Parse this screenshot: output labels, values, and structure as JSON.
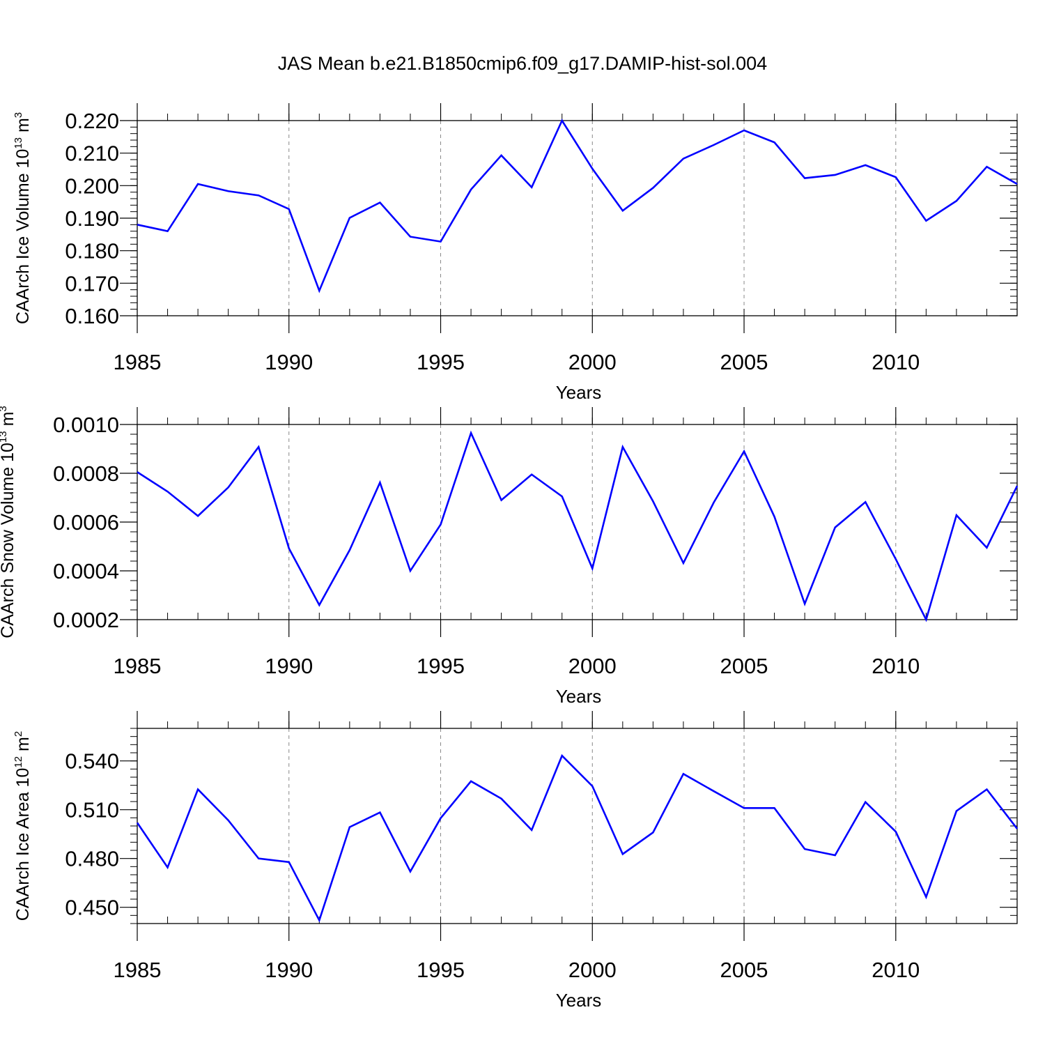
{
  "title": "JAS Mean b.e21.B1850cmip6.f09_g17.DAMIP-hist-sol.004",
  "chart_data": [
    {
      "type": "line",
      "title": "JAS Mean b.e21.B1850cmip6.f09_g17.DAMIP-hist-sol.004",
      "xlabel": "Years",
      "ylabel": {
        "text": "CAArch Ice Volume 10",
        "exp": "13",
        "unit": " m",
        "unit_exp": "3"
      },
      "xlim": [
        1985,
        2014
      ],
      "ylim": [
        0.16,
        0.22
      ],
      "x_ticks": [
        1985,
        1990,
        1995,
        2000,
        2005,
        2010
      ],
      "x_tick_labels": [
        "1985",
        "1990",
        "1995",
        "2000",
        "2005",
        "2010"
      ],
      "y_ticks": [
        0.16,
        0.17,
        0.18,
        0.19,
        0.2,
        0.21,
        0.22
      ],
      "y_tick_labels": [
        "0.160",
        "0.170",
        "0.180",
        "0.190",
        "0.200",
        "0.210",
        "0.220"
      ],
      "y_minor_step": 0.002,
      "gridlines": "dashed vertical at major x ticks",
      "line_color": "#0000ff",
      "x": [
        1985,
        1986,
        1987,
        1988,
        1989,
        1990,
        1991,
        1992,
        1993,
        1994,
        1995,
        1996,
        1997,
        1998,
        1999,
        2000,
        2001,
        2002,
        2003,
        2004,
        2005,
        2006,
        2007,
        2008,
        2009,
        2010,
        2011,
        2012,
        2013,
        2014
      ],
      "values": [
        0.188,
        0.186,
        0.2005,
        0.1983,
        0.197,
        0.1928,
        0.1677,
        0.1901,
        0.1948,
        0.1843,
        0.1828,
        0.1988,
        0.2093,
        0.1995,
        0.22,
        0.2052,
        0.1923,
        0.1993,
        0.2083,
        0.2125,
        0.217,
        0.2133,
        0.2023,
        0.2033,
        0.2063,
        0.2026,
        0.1892,
        0.1953,
        0.2058,
        0.2005
      ]
    },
    {
      "type": "line",
      "xlabel": "Years",
      "ylabel": {
        "text": "CAArch Snow Volume 10",
        "exp": "13",
        "unit": " m",
        "unit_exp": "3"
      },
      "xlim": [
        1985,
        2014
      ],
      "ylim": [
        0.0002,
        0.001
      ],
      "x_ticks": [
        1985,
        1990,
        1995,
        2000,
        2005,
        2010
      ],
      "x_tick_labels": [
        "1985",
        "1990",
        "1995",
        "2000",
        "2005",
        "2010"
      ],
      "y_ticks": [
        0.0002,
        0.0004,
        0.0006,
        0.0008,
        0.001
      ],
      "y_tick_labels": [
        "0.0002",
        "0.0004",
        "0.0006",
        "0.0008",
        "0.0010"
      ],
      "y_minor_step": 4e-05,
      "gridlines": "dashed vertical at major x ticks",
      "line_color": "#0000ff",
      "x": [
        1985,
        1986,
        1987,
        1988,
        1989,
        1990,
        1991,
        1992,
        1993,
        1994,
        1995,
        1996,
        1997,
        1998,
        1999,
        2000,
        2001,
        2002,
        2003,
        2004,
        2005,
        2006,
        2007,
        2008,
        2009,
        2010,
        2011,
        2012,
        2013,
        2014
      ],
      "values": [
        0.000805,
        0.000725,
        0.000625,
        0.000742,
        0.000908,
        0.000492,
        0.00026,
        0.000485,
        0.000762,
        0.0004,
        0.00059,
        0.000965,
        0.00069,
        0.000795,
        0.000705,
        0.00041,
        0.000908,
        0.000685,
        0.000432,
        0.00068,
        0.00089,
        0.000622,
        0.000265,
        0.000578,
        0.000682,
        0.000448,
        0.0002,
        0.000628,
        0.000495,
        0.000748
      ]
    },
    {
      "type": "line",
      "xlabel": "Years",
      "ylabel": {
        "text": "CAArch Ice Area 10",
        "exp": "12",
        "unit": " m",
        "unit_exp": "2"
      },
      "xlim": [
        1985,
        2014
      ],
      "ylim": [
        0.44,
        0.56
      ],
      "x_ticks": [
        1985,
        1990,
        1995,
        2000,
        2005,
        2010
      ],
      "x_tick_labels": [
        "1985",
        "1990",
        "1995",
        "2000",
        "2005",
        "2010"
      ],
      "y_ticks": [
        0.45,
        0.48,
        0.51,
        0.54
      ],
      "y_tick_labels": [
        "0.450",
        "0.480",
        "0.510",
        "0.540"
      ],
      "y_minor_step": 0.005,
      "gridlines": "dashed vertical at major x ticks",
      "line_color": "#0000ff",
      "x": [
        1985,
        1986,
        1987,
        1988,
        1989,
        1990,
        1991,
        1992,
        1993,
        1994,
        1995,
        1996,
        1997,
        1998,
        1999,
        2000,
        2001,
        2002,
        2003,
        2004,
        2005,
        2006,
        2007,
        2008,
        2009,
        2010,
        2011,
        2012,
        2013,
        2014
      ],
      "values": [
        0.502,
        0.4745,
        0.5225,
        0.5035,
        0.48,
        0.4778,
        0.442,
        0.4993,
        0.5083,
        0.472,
        0.5048,
        0.5275,
        0.5168,
        0.4975,
        0.5432,
        0.5245,
        0.4827,
        0.496,
        0.532,
        0.5214,
        0.511,
        0.511,
        0.4858,
        0.482,
        0.5147,
        0.4965,
        0.4563,
        0.5092,
        0.5225,
        0.4983
      ]
    }
  ]
}
